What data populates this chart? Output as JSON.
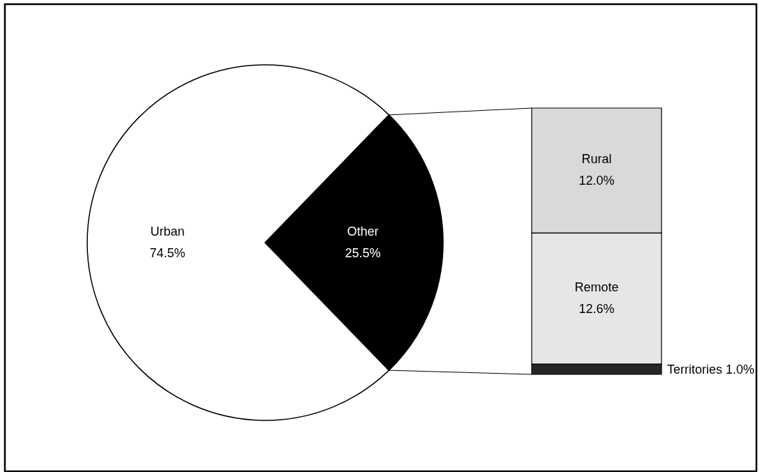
{
  "chart_data": [
    {
      "type": "pie",
      "categories": [
        "Urban",
        "Other"
      ],
      "values": [
        74.5,
        25.5
      ],
      "colors": [
        "#ffffff",
        "#000000"
      ],
      "value_labels": [
        "74.5%",
        "25.5%"
      ]
    },
    {
      "type": "bar",
      "stacked": true,
      "categories": [
        null
      ],
      "series": [
        {
          "name": "Territories",
          "color": "#262626",
          "values": [
            1.0
          ],
          "value_labels": [
            "1.0%"
          ]
        },
        {
          "name": "Remote",
          "color": "#e6e6e6",
          "values": [
            12.6
          ],
          "value_labels": [
            "12.6%"
          ]
        },
        {
          "name": "Rural",
          "color": "#d9d9d9",
          "values": [
            12.0
          ],
          "value_labels": [
            "12.0%"
          ]
        }
      ]
    }
  ]
}
